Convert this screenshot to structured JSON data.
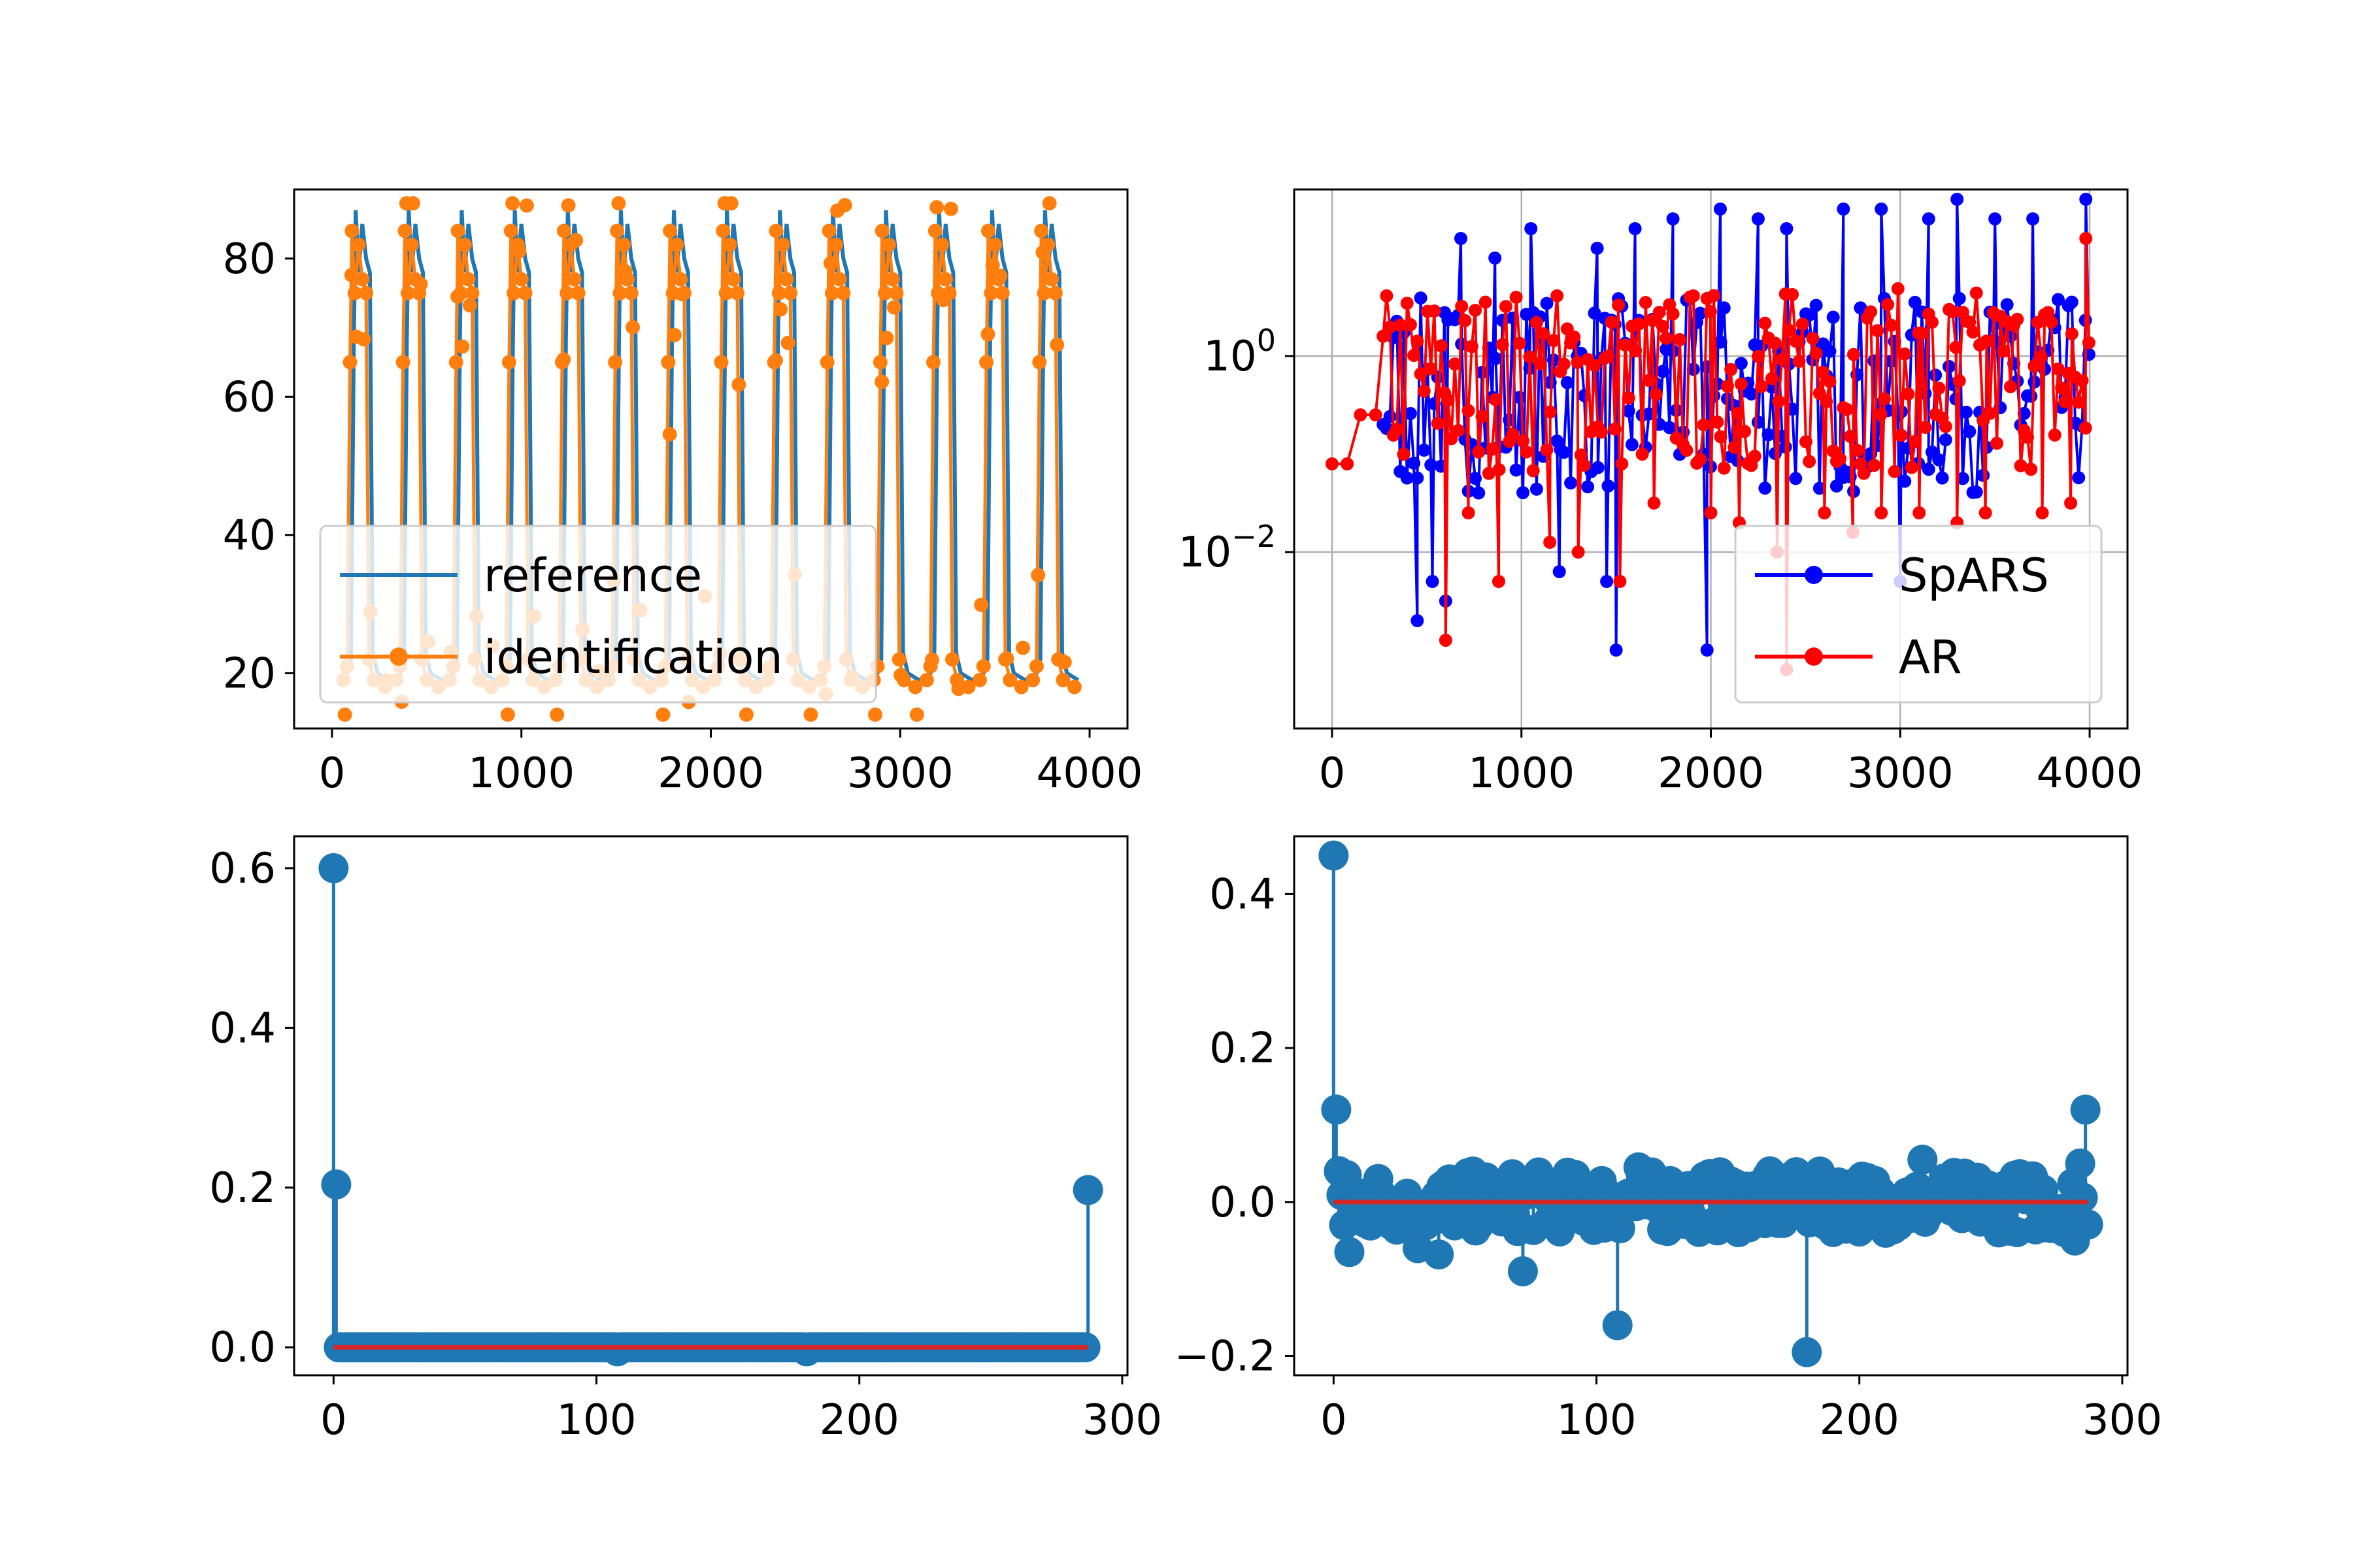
{
  "figure": {
    "title": ""
  },
  "chart_data": [
    {
      "id": "top-left",
      "type": "line",
      "title": "",
      "xlabel": "",
      "ylabel": "",
      "xlim": [
        -200,
        4200
      ],
      "ylim": [
        12,
        90
      ],
      "grid": false,
      "legend_position": "lower-left",
      "xticks": [
        0,
        1000,
        2000,
        3000,
        4000
      ],
      "yticks": [
        20,
        40,
        60,
        80
      ],
      "ytick_labels": [
        "20",
        "40",
        "60",
        "80"
      ],
      "period": 280,
      "cycles": 14,
      "series": [
        {
          "name": "reference",
          "color": "#1f77b4",
          "marker": "none",
          "cycle_peak": 87,
          "cycle_plateau": 78,
          "cycle_low": 20,
          "x_start": 0,
          "x_end": 4000
        },
        {
          "name": "identification",
          "color": "#ff7f0e",
          "marker": "dot",
          "cycle_peak": 84,
          "cycle_plateau": 75,
          "cycle_low": 19,
          "x_start": 100,
          "x_end": 4000
        }
      ]
    },
    {
      "id": "top-right",
      "type": "line",
      "yscale": "log",
      "title": "",
      "xlabel": "",
      "ylabel": "",
      "xlim": [
        -200,
        4200
      ],
      "ylim_log10": [
        -3.8,
        1.7
      ],
      "grid": true,
      "legend_position": "lower-right",
      "xticks": [
        0,
        1000,
        2000,
        3000,
        4000
      ],
      "yticks_log10": [
        -2,
        0
      ],
      "ytick_labels": [
        {
          "base": "10",
          "exp": "−2"
        },
        {
          "base": "10",
          "exp": "0"
        }
      ],
      "series": [
        {
          "name": "SpARS",
          "color": "#0000ff",
          "marker": "dot",
          "x_range": [
            270,
            4000
          ],
          "band_log10": [
            -1.4,
            0.6
          ],
          "spikes": [
            [
              450,
              -2.7
            ],
            [
              530,
              -2.3
            ],
            [
              600,
              -2.5
            ],
            [
              680,
              1.2
            ],
            [
              860,
              1.0
            ],
            [
              1050,
              1.3
            ],
            [
              1200,
              -2.2
            ],
            [
              1400,
              1.1
            ],
            [
              1450,
              -2.3
            ],
            [
              1500,
              -3.0
            ],
            [
              1600,
              1.3
            ],
            [
              1800,
              1.4
            ],
            [
              1980,
              -3.0
            ],
            [
              2050,
              1.5
            ],
            [
              2250,
              1.4
            ],
            [
              2400,
              1.3
            ],
            [
              2700,
              1.5
            ],
            [
              2900,
              1.5
            ],
            [
              3000,
              -2.3
            ],
            [
              3150,
              1.4
            ],
            [
              3300,
              1.6
            ],
            [
              3500,
              1.4
            ],
            [
              3700,
              1.4
            ],
            [
              3980,
              1.6
            ]
          ]
        },
        {
          "name": "AR",
          "color": "#ff0000",
          "marker": "dot",
          "x_range": [
            0,
            4000
          ],
          "lead": [
            [
              0,
              -1.1
            ],
            [
              80,
              -1.1
            ],
            [
              150,
              -0.6
            ],
            [
              230,
              -0.6
            ]
          ],
          "band_log10": [
            -1.2,
            0.7
          ],
          "spikes": [
            [
              600,
              -2.9
            ],
            [
              720,
              -1.6
            ],
            [
              880,
              -2.3
            ],
            [
              1150,
              -1.9
            ],
            [
              1300,
              -2.0
            ],
            [
              1520,
              -2.3
            ],
            [
              1700,
              -1.5
            ],
            [
              2000,
              -1.6
            ],
            [
              2150,
              -1.7
            ],
            [
              2350,
              -2.0
            ],
            [
              2400,
              -3.2
            ],
            [
              2600,
              -1.6
            ],
            [
              2750,
              -1.8
            ],
            [
              2900,
              -1.6
            ],
            [
              3100,
              -1.6
            ],
            [
              3300,
              -1.7
            ],
            [
              3450,
              -1.6
            ],
            [
              3750,
              -1.6
            ],
            [
              3900,
              -1.5
            ],
            [
              3980,
              1.2
            ]
          ]
        }
      ]
    },
    {
      "id": "bottom-left",
      "type": "stem",
      "title": "",
      "xlabel": "",
      "ylabel": "",
      "xlim": [
        -15,
        302
      ],
      "ylim": [
        -0.035,
        0.64
      ],
      "grid": false,
      "xticks": [
        0,
        100,
        200,
        300
      ],
      "yticks": [
        0.0,
        0.2,
        0.4,
        0.6
      ],
      "ytick_labels": [
        "0.0",
        "0.2",
        "0.4",
        "0.6"
      ],
      "marker_color": "#1f77b4",
      "baseline_color": "#d62728",
      "n": 288,
      "nonzero": [
        [
          0,
          0.6
        ],
        [
          1,
          0.204
        ],
        [
          108,
          -0.005
        ],
        [
          180,
          -0.005
        ],
        [
          287,
          0.197
        ]
      ]
    },
    {
      "id": "bottom-right",
      "type": "stem",
      "title": "",
      "xlabel": "",
      "ylabel": "",
      "xlim": [
        -15,
        302
      ],
      "ylim": [
        -0.225,
        0.475
      ],
      "grid": false,
      "xticks": [
        0,
        100,
        200,
        300
      ],
      "yticks": [
        -0.2,
        0.0,
        0.2,
        0.4
      ],
      "ytick_labels": [
        "−0.2",
        "0.0",
        "0.2",
        "0.4"
      ],
      "marker_color": "#1f77b4",
      "baseline_color": "#d62728",
      "n": 288,
      "noise_amplitude": 0.04,
      "overrides": [
        [
          0,
          0.45
        ],
        [
          1,
          0.12
        ],
        [
          2,
          0.04
        ],
        [
          4,
          -0.03
        ],
        [
          6,
          -0.065
        ],
        [
          32,
          -0.06
        ],
        [
          40,
          -0.068
        ],
        [
          72,
          -0.09
        ],
        [
          108,
          -0.16
        ],
        [
          116,
          0.045
        ],
        [
          180,
          -0.195
        ],
        [
          224,
          0.055
        ],
        [
          282,
          -0.05
        ],
        [
          284,
          0.05
        ],
        [
          286,
          0.12
        ]
      ]
    }
  ]
}
